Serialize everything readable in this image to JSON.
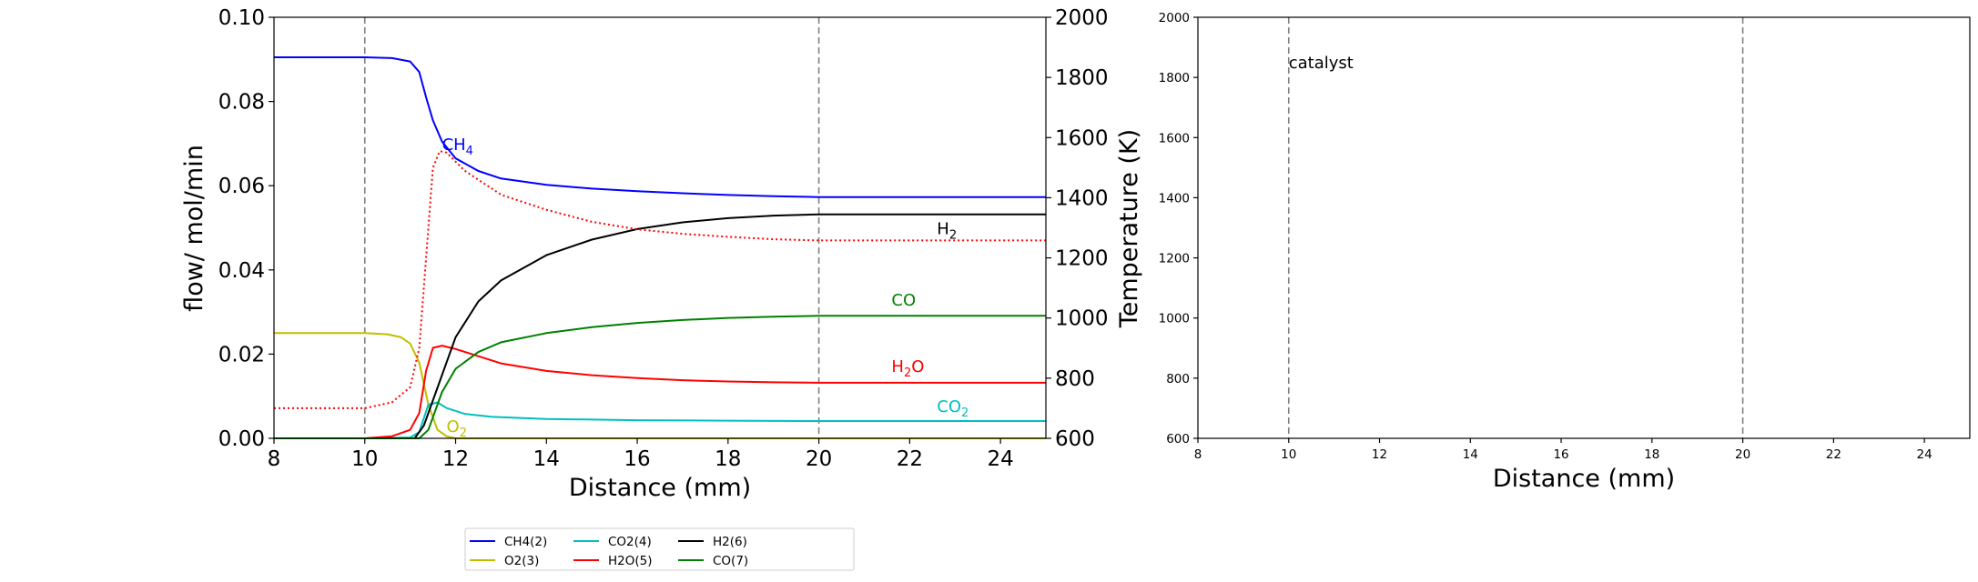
{
  "chart_data": [
    {
      "type": "line",
      "xlabel": "Distance (mm)",
      "ylabel": "flow/ mol/min",
      "ylabel_right": "Temperature (K)",
      "xlim": [
        8,
        25
      ],
      "ylim": [
        0,
        0.1
      ],
      "ylim_right": [
        600,
        2000
      ],
      "x_ticks": [
        "8",
        "10",
        "12",
        "14",
        "16",
        "18",
        "20",
        "22",
        "24"
      ],
      "y_ticks": [
        "0.00",
        "0.02",
        "0.04",
        "0.06",
        "0.08",
        "0.10"
      ],
      "y_ticks_right": [
        "600",
        "800",
        "1000",
        "1200",
        "1400",
        "1600",
        "1800",
        "2000"
      ],
      "vlines_x": [
        10,
        20
      ],
      "series": [
        {
          "name": "CH4(2)",
          "color": "#0000ff",
          "x": [
            8,
            10,
            10.6,
            11.0,
            11.2,
            11.35,
            11.5,
            11.7,
            12.0,
            12.5,
            13,
            14,
            15,
            16,
            17,
            18,
            19,
            20,
            25
          ],
          "y": [
            0.0905,
            0.0905,
            0.0903,
            0.0895,
            0.087,
            0.081,
            0.0755,
            0.0705,
            0.0665,
            0.0635,
            0.0617,
            0.0602,
            0.0593,
            0.0587,
            0.0582,
            0.0578,
            0.0575,
            0.0573,
            0.0573
          ]
        },
        {
          "name": "O2(3)",
          "color": "#bfbf00",
          "x": [
            8,
            10,
            10.5,
            10.8,
            11.0,
            11.2,
            11.4,
            11.6,
            11.8,
            12.0,
            25
          ],
          "y": [
            0.025,
            0.025,
            0.0247,
            0.024,
            0.0225,
            0.018,
            0.008,
            0.002,
            0.0005,
            0.0,
            0.0
          ]
        },
        {
          "name": "CO2(4)",
          "color": "#00bfbf",
          "x": [
            8,
            10,
            11.0,
            11.2,
            11.4,
            11.6,
            11.8,
            12.2,
            12.8,
            14,
            16,
            18,
            20,
            25
          ],
          "y": [
            0,
            0,
            0.0002,
            0.0015,
            0.008,
            0.0085,
            0.0072,
            0.0058,
            0.0051,
            0.0046,
            0.0043,
            0.0042,
            0.0041,
            0.0041
          ]
        },
        {
          "name": "H2O(5)",
          "color": "#ff0000",
          "x": [
            8,
            10,
            10.6,
            11.0,
            11.2,
            11.35,
            11.5,
            11.7,
            12.0,
            12.5,
            13,
            14,
            15,
            16,
            17,
            18,
            19,
            20,
            25
          ],
          "y": [
            0,
            0,
            0.0005,
            0.002,
            0.006,
            0.016,
            0.0215,
            0.022,
            0.0212,
            0.0195,
            0.0178,
            0.016,
            0.015,
            0.0143,
            0.0138,
            0.0135,
            0.0133,
            0.0132,
            0.0132
          ]
        },
        {
          "name": "H2(6)",
          "color": "#000000",
          "x": [
            8,
            11.1,
            11.3,
            11.6,
            12.0,
            12.5,
            13,
            14,
            15,
            16,
            17,
            18,
            19,
            20,
            25
          ],
          "y": [
            0,
            0,
            0.003,
            0.012,
            0.024,
            0.0325,
            0.0375,
            0.0435,
            0.0472,
            0.0497,
            0.0513,
            0.0523,
            0.0529,
            0.0532,
            0.0532
          ]
        },
        {
          "name": "CO(7)",
          "color": "#008000",
          "x": [
            8,
            11.2,
            11.4,
            11.7,
            12.0,
            12.5,
            13,
            14,
            15,
            16,
            17,
            18,
            19,
            20,
            25
          ],
          "y": [
            0,
            0,
            0.002,
            0.011,
            0.0165,
            0.0205,
            0.0228,
            0.025,
            0.0264,
            0.0274,
            0.0281,
            0.0286,
            0.0289,
            0.0291,
            0.0291
          ]
        },
        {
          "name": "",
          "color": "#ff0000",
          "style": "dotted",
          "axis": "right",
          "x": [
            8,
            10,
            10.6,
            11.0,
            11.2,
            11.35,
            11.5,
            11.65,
            11.8,
            12.2,
            13,
            14,
            15,
            16,
            17,
            18,
            19,
            20,
            25
          ],
          "y": [
            700,
            700,
            720,
            770,
            900,
            1200,
            1500,
            1555,
            1550,
            1490,
            1410,
            1360,
            1320,
            1295,
            1280,
            1270,
            1262,
            1258,
            1258
          ]
        }
      ],
      "annotations": [
        {
          "text": "CH",
          "sub": "4",
          "x": 11.7,
          "y": 0.0685,
          "color": "#0000ff"
        },
        {
          "text": "H",
          "sub": "2",
          "x": 22.6,
          "y": 0.0485,
          "color": "#000000"
        },
        {
          "text": "CO",
          "x": 21.6,
          "y": 0.0315,
          "color": "#008000"
        },
        {
          "text": "H",
          "sub": "2",
          "tail": "O",
          "x": 21.6,
          "y": 0.0158,
          "color": "#ff0000"
        },
        {
          "text": "CO",
          "sub": "2",
          "x": 22.6,
          "y": 0.0063,
          "color": "#00bfbf"
        },
        {
          "text": "O",
          "sub": "2",
          "x": 11.8,
          "y": 0.0015,
          "color": "#bfbf00"
        }
      ],
      "legend": {
        "placement": "below",
        "entries": [
          {
            "label": "CH4(2)",
            "color": "#0000ff"
          },
          {
            "label": "O2(3)",
            "color": "#bfbf00"
          },
          {
            "label": "CO2(4)",
            "color": "#00bfbf"
          },
          {
            "label": "H2O(5)",
            "color": "#ff0000"
          },
          {
            "label": "H2(6)",
            "color": "#000000"
          },
          {
            "label": "CO(7)",
            "color": "#008000"
          }
        ]
      }
    },
    {
      "type": "line",
      "xlabel": "Distance (mm)",
      "xlim": [
        8,
        25
      ],
      "ylim": [
        600,
        2000
      ],
      "x_ticks": [
        "8",
        "10",
        "12",
        "14",
        "16",
        "18",
        "20",
        "22",
        "24"
      ],
      "y_ticks": [
        "600",
        "800",
        "1000",
        "1200",
        "1400",
        "1600",
        "1800",
        "2000"
      ],
      "vlines_x": [
        10,
        20
      ],
      "annotations": [
        {
          "text": "catalyst",
          "x": 10.0,
          "y": 1830,
          "color": "#000000"
        }
      ],
      "series": []
    }
  ]
}
